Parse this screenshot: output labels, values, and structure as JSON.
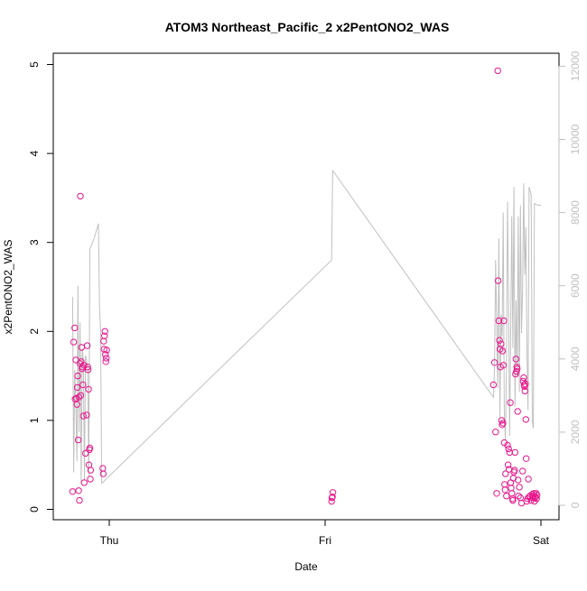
{
  "chart_data": {
    "type": "scatter",
    "title": "ATOM3 Northeast_Pacific_2 x2PentONO2_WAS",
    "xlabel": "Date",
    "ylabel": "x2PentONO2_WAS",
    "x_ticks": [
      "Thu",
      "Fri",
      "Sat"
    ],
    "y_ticks": [
      "0",
      "1",
      "2",
      "3",
      "4",
      "5"
    ],
    "y_right_ticks": [
      "0",
      "2000",
      "4000",
      "6000",
      "8000",
      "10000",
      "12000"
    ],
    "ylim": [
      -0.1,
      5.1
    ],
    "y_right_lim": [
      -230,
      12220
    ],
    "grid": false,
    "colors": {
      "points": "#e8168c",
      "line": "#c0c0c0",
      "axis": "#000000",
      "right_axis": "#c0c0c0"
    },
    "series": [
      {
        "kind": "points",
        "points": [
          [
            -0.17,
            0.2
          ],
          [
            -0.165,
            1.88
          ],
          [
            -0.16,
            2.04
          ],
          [
            -0.158,
            1.24
          ],
          [
            -0.155,
            1.68
          ],
          [
            -0.152,
            1.25
          ],
          [
            -0.15,
            1.18
          ],
          [
            -0.148,
            1.37
          ],
          [
            -0.146,
            1.5
          ],
          [
            -0.144,
            0.78
          ],
          [
            -0.142,
            0.21
          ],
          [
            -0.14,
            1.26
          ],
          [
            -0.138,
            0.1
          ],
          [
            -0.136,
            1.64
          ],
          [
            -0.134,
            3.52
          ],
          [
            -0.132,
            1.28
          ],
          [
            -0.13,
            1.66
          ],
          [
            -0.128,
            1.82
          ],
          [
            -0.126,
            1.58
          ],
          [
            -0.124,
            1.6
          ],
          [
            -0.122,
            1.4
          ],
          [
            -0.12,
            1.05
          ],
          [
            -0.118,
            1.62
          ],
          [
            -0.116,
            0.3
          ],
          [
            -0.11,
            0.63
          ],
          [
            -0.105,
            1.06
          ],
          [
            -0.102,
            1.84
          ],
          [
            -0.1,
            1.6
          ],
          [
            -0.098,
            1.57
          ],
          [
            -0.096,
            1.35
          ],
          [
            -0.094,
            0.5
          ],
          [
            -0.092,
            0.67
          ],
          [
            -0.09,
            0.69
          ],
          [
            -0.088,
            0.34
          ],
          [
            -0.086,
            0.44
          ],
          [
            -0.03,
            0.46
          ],
          [
            -0.028,
            0.4
          ],
          [
            -0.026,
            1.89
          ],
          [
            -0.024,
            1.8
          ],
          [
            -0.022,
            1.95
          ],
          [
            -0.02,
            2.0
          ],
          [
            -0.018,
            1.74
          ],
          [
            -0.016,
            1.66
          ],
          [
            -0.014,
            1.7
          ],
          [
            -0.012,
            1.79
          ],
          [
            1.03,
            0.09
          ],
          [
            1.032,
            0.13
          ],
          [
            1.034,
            0.14
          ],
          [
            1.036,
            0.19
          ],
          [
            1.78,
            1.4
          ],
          [
            1.785,
            1.65
          ],
          [
            1.79,
            0.87
          ],
          [
            1.795,
            0.18
          ],
          [
            1.8,
            4.93
          ],
          [
            1.802,
            2.57
          ],
          [
            1.805,
            2.12
          ],
          [
            1.808,
            1.9
          ],
          [
            1.81,
            1.8
          ],
          [
            1.812,
            1.6
          ],
          [
            1.815,
            1.86
          ],
          [
            1.818,
            1.0
          ],
          [
            1.82,
            0.95
          ],
          [
            1.822,
            1.78
          ],
          [
            1.824,
            0.97
          ],
          [
            1.826,
            1.62
          ],
          [
            1.828,
            2.12
          ],
          [
            1.83,
            0.75
          ],
          [
            1.832,
            0.28
          ],
          [
            1.834,
            0.22
          ],
          [
            1.836,
            0.4
          ],
          [
            1.84,
            0.15
          ],
          [
            1.845,
            0.72
          ],
          [
            1.848,
            0.5
          ],
          [
            1.85,
            0.68
          ],
          [
            1.852,
            0.45
          ],
          [
            1.855,
            0.64
          ],
          [
            1.858,
            1.2
          ],
          [
            1.86,
            0.3
          ],
          [
            1.862,
            0.24
          ],
          [
            1.865,
            0.18
          ],
          [
            1.868,
            0.12
          ],
          [
            1.87,
            0.1
          ],
          [
            1.872,
            0.35
          ],
          [
            1.875,
            0.42
          ],
          [
            1.878,
            0.44
          ],
          [
            1.88,
            0.64
          ],
          [
            1.882,
            1.52
          ],
          [
            1.884,
            1.69
          ],
          [
            1.886,
            1.55
          ],
          [
            1.888,
            1.6
          ],
          [
            1.89,
            1.58
          ],
          [
            1.892,
            1.1
          ],
          [
            1.894,
            0.33
          ],
          [
            1.896,
            0.15
          ],
          [
            1.9,
            0.25
          ],
          [
            1.905,
            0.13
          ],
          [
            1.91,
            0.07
          ],
          [
            1.915,
            0.43
          ],
          [
            1.918,
            1.44
          ],
          [
            1.92,
            1.48
          ],
          [
            1.922,
            1.4
          ],
          [
            1.924,
            1.38
          ],
          [
            1.926,
            1.33
          ],
          [
            1.928,
            1.41
          ],
          [
            1.93,
            1.01
          ],
          [
            1.932,
            0.57
          ],
          [
            1.934,
            0.09
          ],
          [
            1.938,
            0.12
          ],
          [
            1.942,
            0.34
          ],
          [
            1.945,
            0.14
          ],
          [
            1.95,
            0.15
          ],
          [
            1.955,
            0.1
          ],
          [
            1.96,
            0.17
          ],
          [
            1.962,
            0.13
          ],
          [
            1.965,
            0.15
          ],
          [
            1.968,
            0.18
          ],
          [
            1.97,
            0.09
          ],
          [
            1.972,
            0.13
          ],
          [
            1.975,
            0.14
          ],
          [
            1.978,
            0.18
          ],
          [
            1.98,
            0.12
          ],
          [
            1.982,
            0.16
          ]
        ]
      },
      {
        "kind": "line",
        "axis": "right",
        "points": [
          [
            -0.17,
            5700
          ],
          [
            -0.165,
            900
          ],
          [
            -0.16,
            3700
          ],
          [
            -0.155,
            2800
          ],
          [
            -0.15,
            1200
          ],
          [
            -0.145,
            6000
          ],
          [
            -0.14,
            2000
          ],
          [
            -0.135,
            5000
          ],
          [
            -0.13,
            600
          ],
          [
            -0.125,
            4300
          ],
          [
            -0.12,
            3900
          ],
          [
            -0.115,
            700
          ],
          [
            -0.11,
            4100
          ],
          [
            -0.1,
            3800
          ],
          [
            -0.095,
            800
          ],
          [
            -0.09,
            7000
          ],
          [
            -0.07,
            7300
          ],
          [
            -0.05,
            7700
          ],
          [
            -0.045,
            5400
          ],
          [
            -0.04,
            4800
          ],
          [
            -0.035,
            600
          ],
          [
            1.03,
            6700
          ],
          [
            1.035,
            9150
          ],
          [
            1.78,
            2950
          ],
          [
            1.785,
            3800
          ],
          [
            1.79,
            6700
          ],
          [
            1.8,
            3200
          ],
          [
            1.805,
            7300
          ],
          [
            1.81,
            2400
          ],
          [
            1.815,
            5200
          ],
          [
            1.82,
            4600
          ],
          [
            1.825,
            8000
          ],
          [
            1.83,
            2600
          ],
          [
            1.835,
            1800
          ],
          [
            1.84,
            3700
          ],
          [
            1.845,
            8300
          ],
          [
            1.85,
            5500
          ],
          [
            1.855,
            1900
          ],
          [
            1.86,
            4700
          ],
          [
            1.865,
            7900
          ],
          [
            1.87,
            4300
          ],
          [
            1.875,
            8700
          ],
          [
            1.88,
            2700
          ],
          [
            1.885,
            5600
          ],
          [
            1.89,
            3500
          ],
          [
            1.895,
            7900
          ],
          [
            1.9,
            3100
          ],
          [
            1.905,
            8200
          ],
          [
            1.91,
            4700
          ],
          [
            1.915,
            5900
          ],
          [
            1.92,
            8800
          ],
          [
            1.925,
            6300
          ],
          [
            1.93,
            7600
          ],
          [
            1.935,
            4200
          ],
          [
            1.94,
            2600
          ],
          [
            1.945,
            8700
          ],
          [
            1.95,
            8600
          ],
          [
            1.955,
            8500
          ],
          [
            1.96,
            2300
          ],
          [
            1.965,
            2100
          ],
          [
            1.97,
            8250
          ],
          [
            1.985,
            8200
          ],
          [
            2.0,
            8200
          ]
        ]
      }
    ]
  }
}
